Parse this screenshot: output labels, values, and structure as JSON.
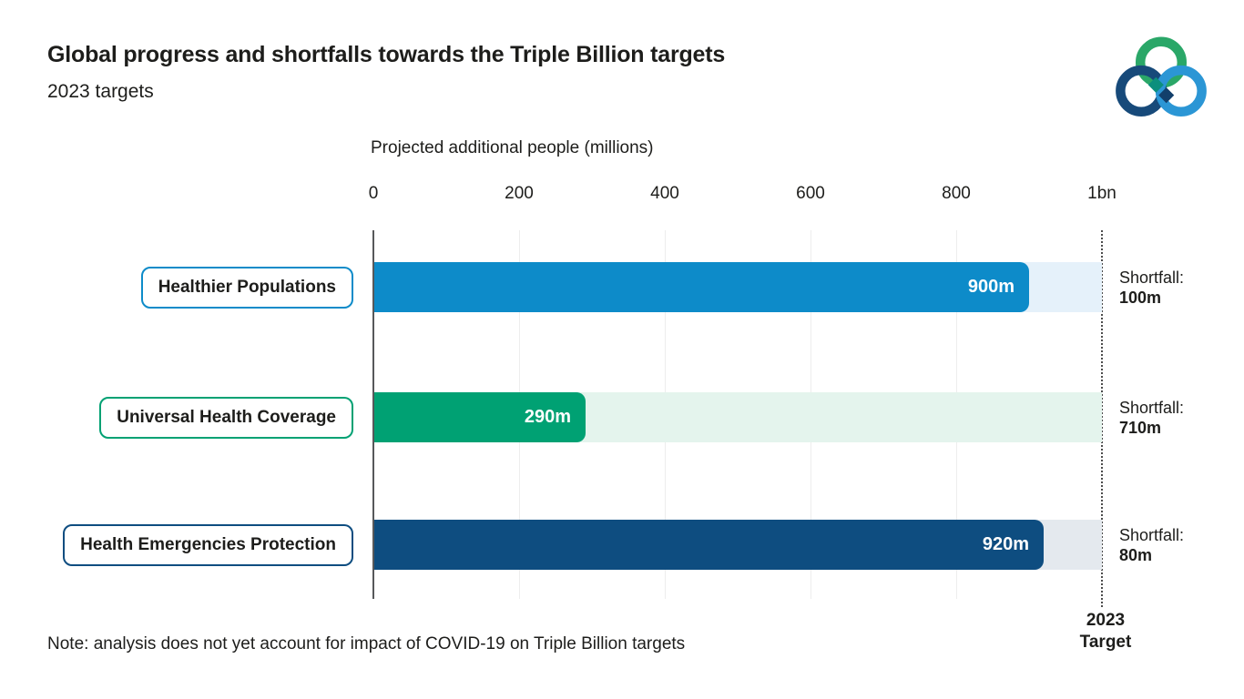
{
  "header": {
    "title": "Global progress and shortfalls towards the Triple Billion targets",
    "subtitle": "2023 targets"
  },
  "axis": {
    "title": "Projected additional people (millions)",
    "ticks": [
      "0",
      "200",
      "400",
      "600",
      "800",
      "1bn"
    ],
    "max": 1000
  },
  "rows": [
    {
      "label": "Healthier Populations",
      "value": 900,
      "value_label": "900m",
      "shortfall_caption": "Shortfall:",
      "shortfall_value": "100m",
      "bar_color": "#0d8bc9",
      "track_color": "#e5f1fa",
      "border_color": "#0d8bc9"
    },
    {
      "label": "Universal Health Coverage",
      "value": 290,
      "value_label": "290m",
      "shortfall_caption": "Shortfall:",
      "shortfall_value": "710m",
      "bar_color": "#00a173",
      "track_color": "#e4f4ed",
      "border_color": "#00a173"
    },
    {
      "label": "Health Emergencies Protection",
      "value": 920,
      "value_label": "920m",
      "shortfall_caption": "Shortfall:",
      "shortfall_value": "80m",
      "bar_color": "#0e4d80",
      "track_color": "#e4e9ee",
      "border_color": "#0e4d80"
    }
  ],
  "target_line": {
    "line1": "2023",
    "line2": "Target"
  },
  "note": "Note: analysis does not yet account for impact of COVID-19 on Triple Billion targets",
  "logo": {
    "name": "triple-billion-logo",
    "green": "#2aa768",
    "navy": "#174a7a",
    "blue": "#2b96d5",
    "teal_diamond": "#0b8f7d",
    "navy_diamond": "#123f6b"
  },
  "chart_data": {
    "type": "bar",
    "orientation": "horizontal",
    "title": "Global progress and shortfalls towards the Triple Billion targets",
    "subtitle": "2023 targets",
    "xlabel": "Projected additional people (millions)",
    "categories": [
      "Healthier Populations",
      "Universal Health Coverage",
      "Health Emergencies Protection"
    ],
    "series": [
      {
        "name": "Projected additional people (millions)",
        "values": [
          900,
          290,
          920
        ]
      },
      {
        "name": "Shortfall (millions)",
        "values": [
          100,
          710,
          80
        ]
      }
    ],
    "data_labels": [
      "900m",
      "290m",
      "920m"
    ],
    "shortfall_labels": [
      "Shortfall: 100m",
      "Shortfall: 710m",
      "Shortfall: 80m"
    ],
    "target_value": 1000,
    "target_label": "2023 Target",
    "xlim": [
      0,
      1000
    ],
    "tick_labels": [
      "0",
      "200",
      "400",
      "600",
      "800",
      "1bn"
    ],
    "grid": "vertical gridlines at 200,400,600,800; dotted target line at 1000",
    "legend_position": "none",
    "note": "Note: analysis does not yet account for impact of COVID-19 on Triple Billion targets"
  }
}
